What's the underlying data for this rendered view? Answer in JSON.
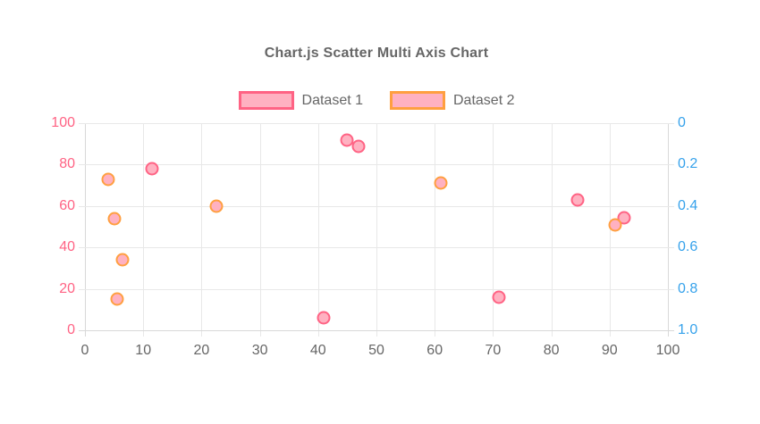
{
  "chart_data": {
    "type": "scatter",
    "title": "Chart.js Scatter Multi Axis Chart",
    "legend_position": "top",
    "grid": true,
    "background_color": "#FFFFFF",
    "title_color": "#666666",
    "legend_text_color": "#666666",
    "grid_color": "#E8E8E8",
    "axis_border_color": "#D9D9D9",
    "x_axis": {
      "label": "",
      "min": 0,
      "max": 100,
      "ticks": [
        0,
        10,
        20,
        30,
        40,
        50,
        60,
        70,
        80,
        90,
        100
      ],
      "tick_color": "#666666"
    },
    "y_axis_left": {
      "label": "",
      "min": 0,
      "max": 100,
      "reversed": false,
      "ticks": [
        0,
        20,
        40,
        60,
        80,
        100
      ],
      "tick_color": "#FF6384"
    },
    "y_axis_right": {
      "label": "",
      "min": 0,
      "max": 1,
      "reversed": true,
      "ticks": [
        "0",
        "0.2",
        "0.4",
        "0.6",
        "0.8",
        "1.0"
      ],
      "tick_color": "#36A2EB"
    },
    "series": [
      {
        "name": "Dataset 1",
        "y_axis": "left",
        "border_color": "#FF6384",
        "fill_color": "#FFB1C1",
        "points": [
          {
            "x": 11.5,
            "y": 78
          },
          {
            "x": 41,
            "y": 6
          },
          {
            "x": 45,
            "y": 92
          },
          {
            "x": 47,
            "y": 89
          },
          {
            "x": 71,
            "y": 16
          },
          {
            "x": 84.5,
            "y": 63
          },
          {
            "x": 92.5,
            "y": 54.5
          }
        ]
      },
      {
        "name": "Dataset 2",
        "y_axis": "right",
        "border_color": "#FF9F40",
        "fill_color": "#FFB1C1",
        "points": [
          {
            "x": 4,
            "y": 0.27
          },
          {
            "x": 5,
            "y": 0.46
          },
          {
            "x": 5.5,
            "y": 0.85
          },
          {
            "x": 6.5,
            "y": 0.66
          },
          {
            "x": 22.5,
            "y": 0.4
          },
          {
            "x": 61,
            "y": 0.29
          },
          {
            "x": 91,
            "y": 0.49
          }
        ]
      }
    ]
  }
}
